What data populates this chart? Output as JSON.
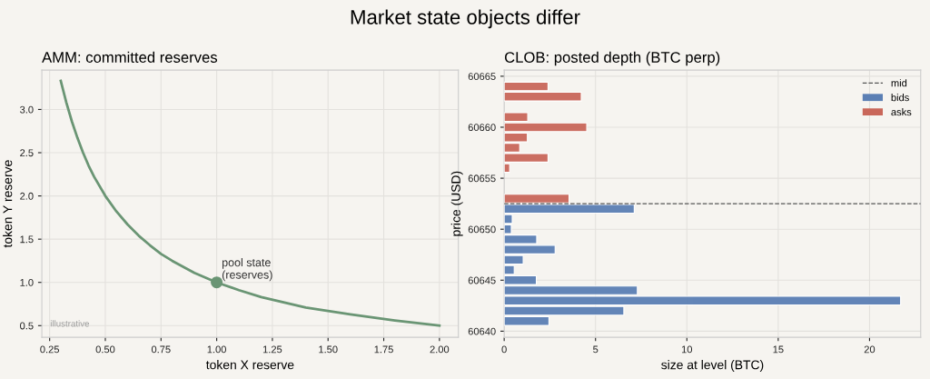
{
  "chart_data": [
    {
      "type": "line",
      "title": "AMM: committed reserves",
      "xlabel": "token X reserve",
      "ylabel": "token Y reserve",
      "xlim": [
        0.215,
        2.085
      ],
      "ylim": [
        0.365,
        3.455
      ],
      "xticks": [
        {
          "value": 0.25,
          "label": "0.25"
        },
        {
          "value": 0.5,
          "label": "0.50"
        },
        {
          "value": 0.75,
          "label": "0.75"
        },
        {
          "value": 1.0,
          "label": "1.00"
        },
        {
          "value": 1.25,
          "label": "1.25"
        },
        {
          "value": 1.5,
          "label": "1.50"
        },
        {
          "value": 1.75,
          "label": "1.75"
        },
        {
          "value": 2.0,
          "label": "2.00"
        }
      ],
      "yticks": [
        0.5,
        {
          "value": 1,
          "label": "1.0"
        },
        1.5,
        {
          "value": 2,
          "label": "2.0"
        },
        2.5,
        {
          "value": 3,
          "label": "3.0"
        }
      ],
      "grid": true,
      "legend": false,
      "series": [
        {
          "type": "line",
          "color": "#6a9574",
          "x": [
            0.3,
            0.325,
            0.35,
            0.375,
            0.4,
            0.425,
            0.45,
            0.5,
            0.55,
            0.6,
            0.65,
            0.7,
            0.75,
            0.8,
            0.9,
            1.0,
            1.1,
            1.2,
            1.3,
            1.4,
            1.6,
            1.8,
            2.0
          ],
          "values": [
            3.33,
            3.08,
            2.86,
            2.67,
            2.5,
            2.35,
            2.22,
            2.0,
            1.82,
            1.67,
            1.54,
            1.43,
            1.33,
            1.25,
            1.11,
            1.0,
            0.91,
            0.83,
            0.77,
            0.71,
            0.63,
            0.56,
            0.5
          ]
        },
        {
          "type": "scatter",
          "color": "#6a9574",
          "x": [
            1.0
          ],
          "values": [
            1.0
          ]
        }
      ],
      "annotations": [
        "Market state objects differ",
        {
          "text": "pool state\n(reserves)",
          "x": 1.0,
          "y": 1.0
        },
        "illustrative"
      ]
    },
    {
      "type": "bar",
      "orientation": "horizontal",
      "title": "CLOB: posted depth (BTC perp)",
      "xlabel": "size at level (BTC)",
      "ylabel": "price (USD)",
      "xlim": [
        0,
        22.8
      ],
      "ylim": [
        60639.4,
        60665.6
      ],
      "xticks": [
        0,
        5,
        10,
        15,
        20
      ],
      "yticks": [
        60640,
        60645,
        60650,
        60655,
        60660,
        60665
      ],
      "grid": true,
      "legend": "top right",
      "series": [
        {
          "name": "bids",
          "color": "#5b7fb4",
          "x": [
            60652,
            60651,
            60650,
            60649,
            60648,
            60647,
            60646,
            60645,
            60644,
            60643,
            60642,
            60641
          ],
          "values": [
            7.12,
            0.44,
            0.39,
            1.78,
            2.79,
            1.04,
            0.55,
            1.76,
            7.29,
            21.7,
            6.55,
            2.45
          ]
        },
        {
          "name": "asks",
          "color": "#c9675a",
          "x": [
            60664,
            60663,
            60661,
            60660,
            60659,
            60658,
            60657,
            60656,
            60653
          ],
          "values": [
            2.4,
            4.22,
            1.29,
            4.52,
            1.27,
            0.85,
            2.4,
            0.3,
            3.55
          ]
        }
      ],
      "ref_lines": [
        {
          "axis": "y",
          "value": 60652.5,
          "label": "mid",
          "color": "#555555",
          "line_style": "dashed"
        }
      ]
    }
  ]
}
